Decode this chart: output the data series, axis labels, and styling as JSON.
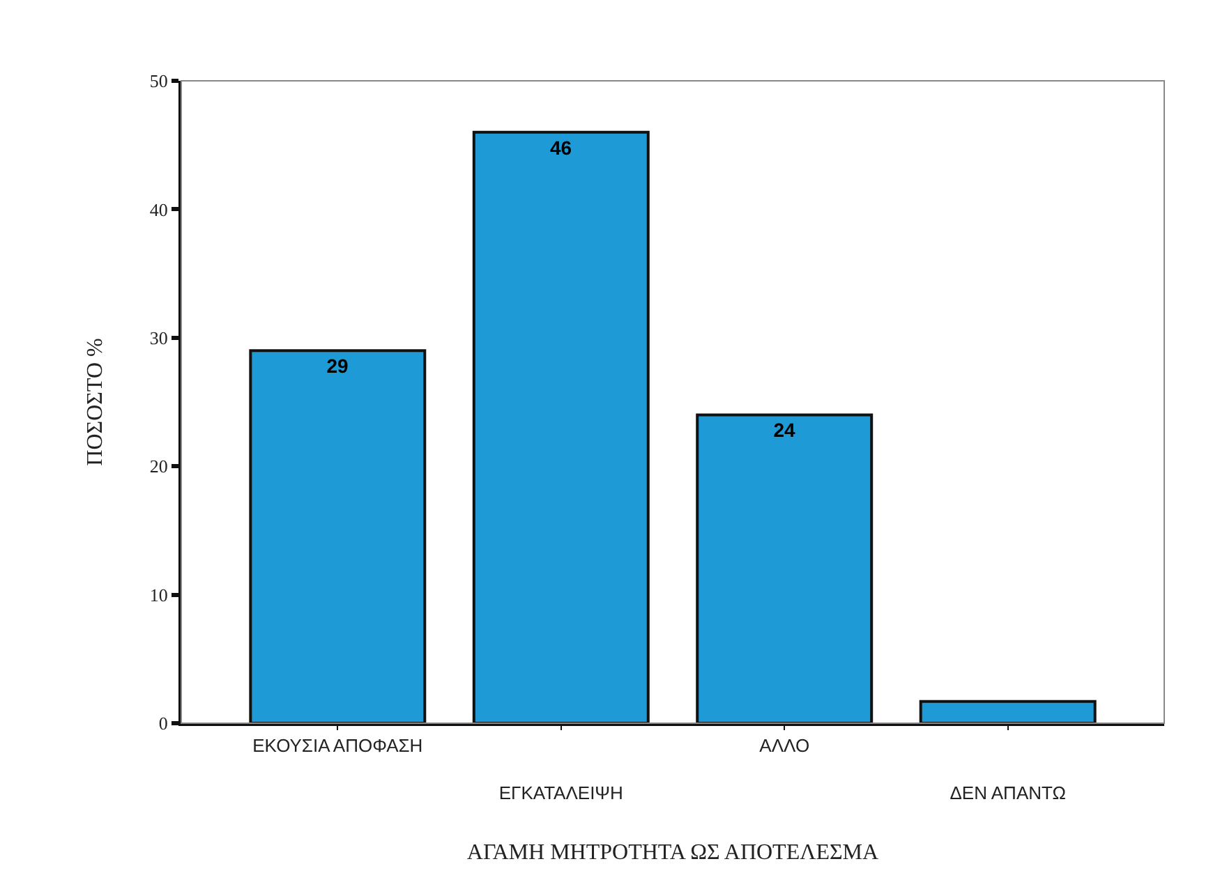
{
  "chart_data": {
    "type": "bar",
    "xlabel": "ΑΓΑΜΗ ΜΗΤΡΟΤΗΤΑ ΩΣ ΑΠΟΤΕΛΕΣΜΑ",
    "ylabel": "ΠΟΣΟΣΤΟ %",
    "categories": [
      "ΕΚΟΥΣΙΑ ΑΠΟΦΑΣΗ",
      "ΕΓΚΑΤΑΛΕΙΨΗ",
      "ΑΛΛΟ",
      "ΔΕΝ ΑΠΑΝΤΩ"
    ],
    "values": [
      29,
      46,
      24,
      1.7
    ],
    "value_labels": [
      "29",
      "46",
      "24",
      null
    ],
    "color": "#1e9ad6",
    "ylim": [
      0,
      50
    ],
    "yticks": [
      0,
      10,
      20,
      30,
      40,
      50
    ],
    "grid": false
  }
}
